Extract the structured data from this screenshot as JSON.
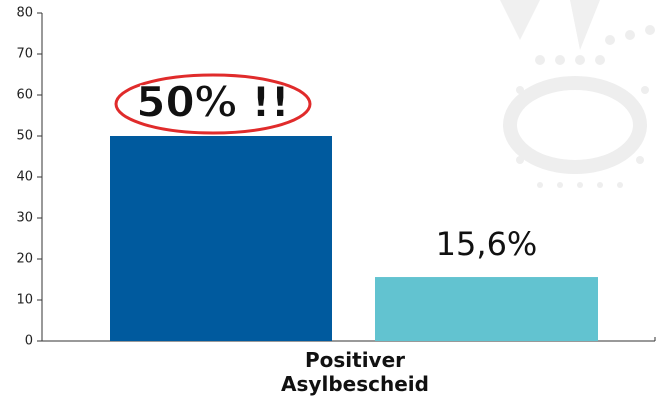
{
  "chart_data": {
    "type": "bar",
    "categories": [
      "Positiver Asylbescheid"
    ],
    "series": [
      {
        "color": "#005a9e",
        "values": [
          50
        ],
        "value_labels": [
          "50% !!"
        ]
      },
      {
        "color": "#62c3d0",
        "values": [
          15.6
        ],
        "value_labels": [
          "15,6%"
        ]
      }
    ],
    "ylim": [
      0,
      80
    ],
    "yticks": [
      0,
      10,
      20,
      30,
      40,
      50,
      60,
      70,
      80
    ]
  }
}
